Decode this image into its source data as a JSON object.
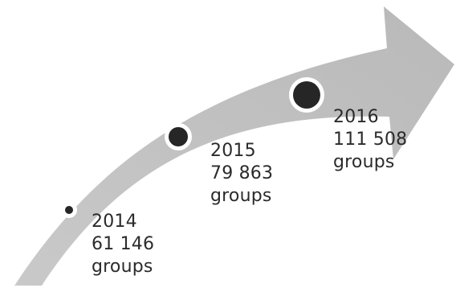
{
  "milestones": [
    {
      "year": "2014",
      "value": "61 146",
      "unit": "groups",
      "marker_size": "small"
    },
    {
      "year": "2015",
      "value": "79 863",
      "unit": "groups",
      "marker_size": "medium"
    },
    {
      "year": "2016",
      "value": "111 508",
      "unit": "groups",
      "marker_size": "large"
    }
  ],
  "colors": {
    "arrow_fill": "#bfbfbf",
    "marker_fill": "#262626",
    "marker_ring": "#ffffff",
    "text": "#2b2b2b"
  }
}
